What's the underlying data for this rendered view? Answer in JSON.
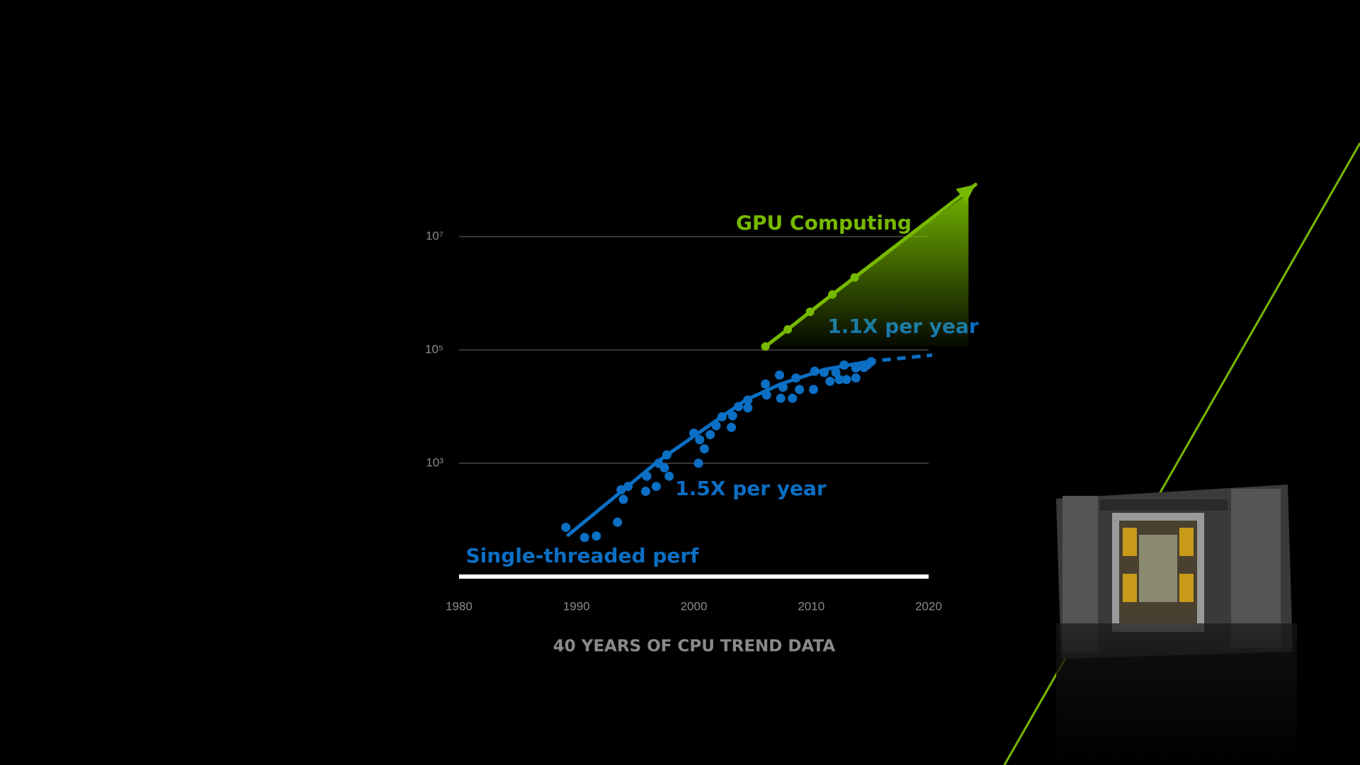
{
  "chart_data": {
    "type": "scatter",
    "caption": "40 YEARS OF CPU TREND DATA",
    "yscale": "log",
    "xlim": [
      1980,
      2020
    ],
    "xticks": [
      1980,
      1990,
      2000,
      2010,
      2020
    ],
    "ylim": [
      10,
      100000000
    ],
    "yticks": [
      {
        "value": 1000,
        "label": "10³"
      },
      {
        "value": 100000,
        "label": "10⁵"
      },
      {
        "value": 10000000,
        "label": "10⁷"
      }
    ],
    "grid": true,
    "series": [
      {
        "name": "Single-threaded perf",
        "color": "#0b6fc4",
        "style": "markers",
        "x": [
          1989.1,
          1990.7,
          1991.7,
          1993.5,
          1993.8,
          1994.0,
          1994.4,
          1995.9,
          1996.0,
          1996.8,
          1997.0,
          1997.5,
          1997.7,
          1997.9,
          2000.0,
          2000.4,
          2000.5,
          2000.9,
          2001.4,
          2001.9,
          2002.4,
          2003.3,
          2003.2,
          2003.8,
          2004.6,
          2004.6,
          2006.1,
          2006.2,
          2007.3,
          2007.4,
          2007.6,
          2008.4,
          2008.7,
          2009.0,
          2010.2,
          2010.3,
          2011.1,
          2011.6,
          2012.1,
          2012.4,
          2012.8,
          2013.0,
          2013.8,
          2013.8,
          2014.5,
          2014.8,
          2015.1
        ],
        "values": [
          74,
          49,
          52,
          91,
          340,
          230,
          390,
          320,
          590,
          390,
          1000,
          830,
          1400,
          590,
          3400,
          1000,
          2600,
          1800,
          3200,
          4600,
          6600,
          6900,
          4300,
          10000,
          13000,
          9500,
          25000,
          16000,
          36000,
          14000,
          22000,
          14000,
          32000,
          20000,
          20000,
          42000,
          40000,
          28000,
          40000,
          30000,
          54000,
          30000,
          32000,
          48000,
          49000,
          55000,
          62000
        ]
      },
      {
        "name": "1.5X per year",
        "color": "#0b6fc4",
        "style": "line",
        "x": [
          1989.3,
          1997.0,
          2004.4,
          2007.4,
          2011.1,
          2014.8
        ],
        "values": [
          54,
          1100,
          13000,
          25000,
          45000,
          62000
        ]
      },
      {
        "name": "1.1X per year",
        "color": "#0b6fc4",
        "style": "dashed",
        "x": [
          2014.8,
          2020.3
        ],
        "values": [
          62000,
          81000
        ]
      },
      {
        "name": "GPU Computing",
        "color": "#76b900",
        "style": "line-markers",
        "arrow": true,
        "fill": true,
        "x": [
          2006.1,
          2008.0,
          2009.9,
          2011.8,
          2013.7,
          2024.0
        ],
        "values": [
          115000,
          230000,
          470000,
          950000,
          1900000,
          83000000
        ]
      }
    ]
  }
}
